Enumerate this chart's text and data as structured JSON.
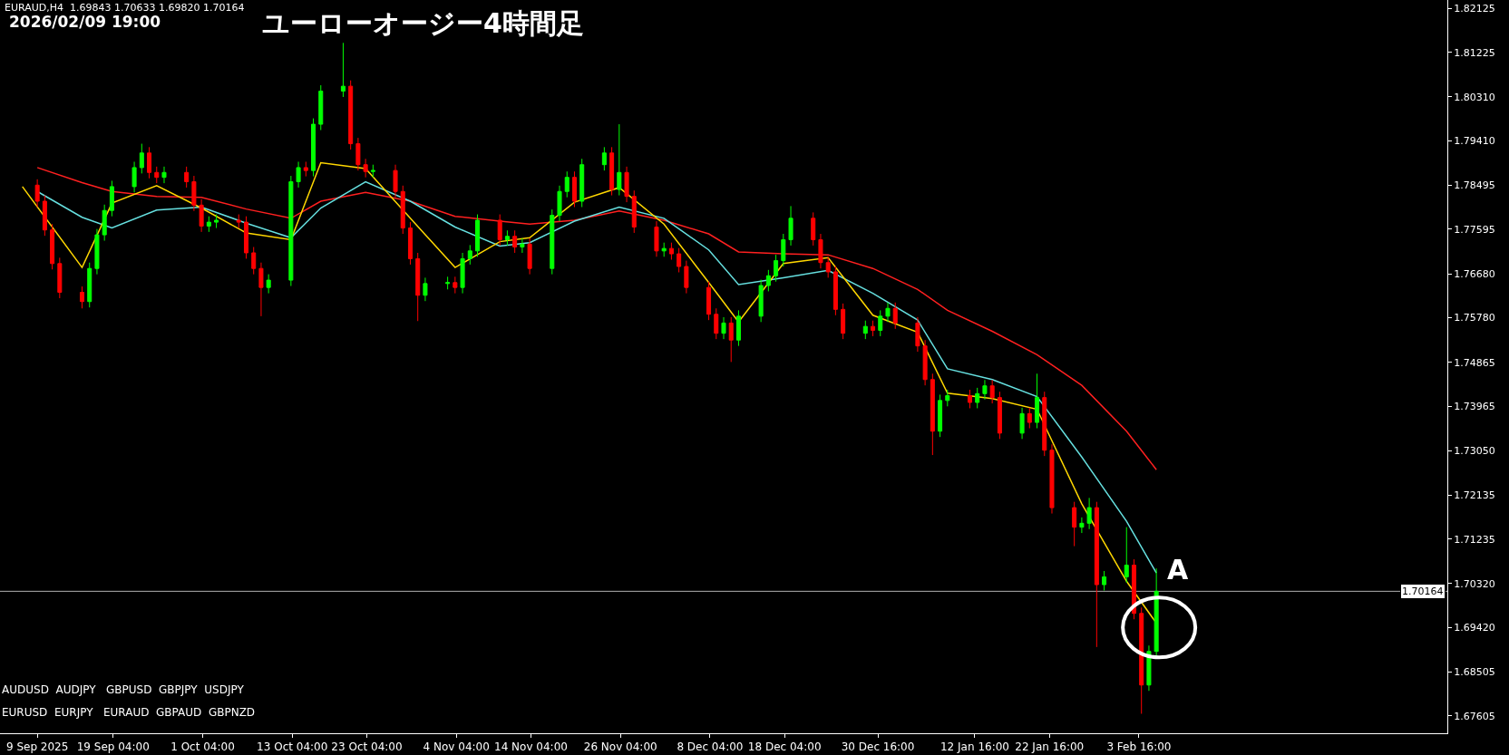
{
  "chart_data": {
    "type": "candlestick",
    "title": "ユーローオージー4時間足",
    "annotations": [
      "EURAUD,H4  1.69843 1.70633 1.69820 1.70164",
      "2026/02/09 19:00",
      "AUDUSD  AUDJPY   GBPUSD  GBPJPY  USDJPY",
      "EURUSD  EURJPY   EURAUD  GBPAUD  GBPNZD",
      "A"
    ],
    "colors": [
      "#ff0000",
      "#ff0000",
      "#ff0000",
      "#ff0000",
      "#ff0000",
      "#00ff00",
      "#00ff00",
      "#00ff00",
      "#00ff00",
      "#00ff00",
      "#00ff00",
      "#ff0000",
      "#ff0000",
      "#00ff00",
      "#ff0000",
      "#ff0000",
      "#ff0000",
      "#00ff00",
      "#00ff00",
      "#ff0000",
      "#ff0000",
      "#ff0000",
      "#ff0000",
      "#00ff00",
      "#00ff00",
      "#00ff00",
      "#ff0000",
      "#00ff00",
      "#00ff00",
      "#00ff00",
      "#ff0000",
      "#ff0000",
      "#ff0000",
      "#00ff00",
      "#ff0000",
      "#ff0000",
      "#ff0000",
      "#ff0000",
      "#00ff00",
      "#00ff00",
      "#ff0000",
      "#00ff00",
      "#00ff00",
      "#00ff00",
      "#ff0000",
      "#00ff00",
      "#ff0000",
      "#00ff00",
      "#ff0000",
      "#00ff00",
      "#00ff00",
      "#00ff00",
      "#ff0000",
      "#00ff00",
      "#00ff00",
      "#ff0000",
      "#00ff00",
      "#ff0000",
      "#ff0000",
      "#ff0000",
      "#00ff00",
      "#ff0000",
      "#ff0000",
      "#ff0000",
      "#ff0000",
      "#ff0000",
      "#00ff00",
      "#ff0000",
      "#00ff00",
      "#00ff00",
      "#00ff00",
      "#00ff00",
      "#00ff00",
      "#00ff00",
      "#ff0000",
      "#ff0000",
      "#ff0000",
      "#ff0000",
      "#ff0000",
      "#00ff00",
      "#ff0000",
      "#00ff00",
      "#00ff00",
      "#ff0000",
      "#ff0000",
      "#ff0000",
      "#ff0000",
      "#00ff00",
      "#00ff00",
      "#ff0000",
      "#00ff00",
      "#00ff00",
      "#ff0000",
      "#ff0000",
      "#00ff00",
      "#ff0000",
      "#00ff00",
      "#ff0000",
      "#ff0000",
      "#ff0000",
      "#00ff00",
      "#00ff00",
      "#ff0000",
      "#00ff00",
      "#00ff00",
      "#ff0000",
      "#ff0000",
      "#00ff00",
      "#00ff00"
    ],
    "x": [
      "2025-09-09",
      "2025-09-10",
      "2025-09-11",
      "2025-09-12",
      "2025-09-15",
      "2025-09-16",
      "2025-09-17",
      "2025-09-18",
      "2025-09-19",
      "2025-09-22",
      "2025-09-23",
      "2025-09-24",
      "2025-09-25",
      "2025-09-26",
      "2025-09-29",
      "2025-09-30",
      "2025-10-01",
      "2025-10-02",
      "2025-10-03",
      "2025-10-06",
      "2025-10-07",
      "2025-10-08",
      "2025-10-09",
      "2025-10-10",
      "2025-10-13",
      "2025-10-14",
      "2025-10-15",
      "2025-10-16",
      "2025-10-17",
      "2025-10-20",
      "2025-10-21",
      "2025-10-22",
      "2025-10-23",
      "2025-10-24",
      "2025-10-27",
      "2025-10-28",
      "2025-10-29",
      "2025-10-30",
      "2025-10-31",
      "2025-11-03",
      "2025-11-04",
      "2025-11-05",
      "2025-11-06",
      "2025-11-07",
      "2025-11-10",
      "2025-11-11",
      "2025-11-12",
      "2025-11-13",
      "2025-11-14",
      "2025-11-17",
      "2025-11-18",
      "2025-11-19",
      "2025-11-20",
      "2025-11-21",
      "2025-11-24",
      "2025-11-25",
      "2025-11-26",
      "2025-11-27",
      "2025-11-28",
      "2025-12-01",
      "2025-12-02",
      "2025-12-03",
      "2025-12-04",
      "2025-12-05",
      "2025-12-08",
      "2025-12-09",
      "2025-12-10",
      "2025-12-11",
      "2025-12-12",
      "2025-12-15",
      "2025-12-16",
      "2025-12-17",
      "2025-12-18",
      "2025-12-19",
      "2025-12-22",
      "2025-12-23",
      "2025-12-24",
      "2025-12-25",
      "2025-12-26",
      "2025-12-29",
      "2025-12-30",
      "2025-12-31",
      "2026-01-01",
      "2026-01-02",
      "2026-01-05",
      "2026-01-06",
      "2026-01-07",
      "2026-01-08",
      "2026-01-09",
      "2026-01-12",
      "2026-01-13",
      "2026-01-14",
      "2026-01-15",
      "2026-01-16",
      "2026-01-19",
      "2026-01-20",
      "2026-01-21",
      "2026-01-22",
      "2026-01-23",
      "2026-01-26",
      "2026-01-27",
      "2026-01-28",
      "2026-01-29",
      "2026-01-30",
      "2026-02-02",
      "2026-02-03",
      "2026-02-04",
      "2026-02-05",
      "2026-02-06"
    ],
    "ohlc": [
      [
        1.785,
        1.7862,
        1.7805,
        1.7817
      ],
      [
        1.7817,
        1.7829,
        1.7746,
        1.7758
      ],
      [
        1.7758,
        1.777,
        1.7677,
        1.7689
      ],
      [
        1.7689,
        1.7701,
        1.7618,
        1.763
      ],
      [
        1.763,
        1.7642,
        1.7597,
        1.7611
      ],
      [
        1.7611,
        1.7691,
        1.7599,
        1.7679
      ],
      [
        1.7679,
        1.776,
        1.7667,
        1.7748
      ],
      [
        1.7748,
        1.781,
        1.7736,
        1.7798
      ],
      [
        1.7798,
        1.7859,
        1.7786,
        1.7847
      ],
      [
        1.7847,
        1.7898,
        1.7835,
        1.7886
      ],
      [
        1.7886,
        1.7935,
        1.7874,
        1.7916
      ],
      [
        1.7916,
        1.7928,
        1.7864,
        1.7876
      ],
      [
        1.7876,
        1.7888,
        1.7854,
        1.7866
      ],
      [
        1.7866,
        1.7888,
        1.7854,
        1.7876
      ],
      [
        1.7876,
        1.7888,
        1.7845,
        1.7857
      ],
      [
        1.7857,
        1.7869,
        1.7797,
        1.7809
      ],
      [
        1.7809,
        1.7821,
        1.7754,
        1.7766
      ],
      [
        1.7766,
        1.7786,
        1.7754,
        1.7774
      ],
      [
        1.7774,
        1.779,
        1.7762,
        1.7778
      ],
      [
        1.7778,
        1.779,
        1.7762,
        1.7774
      ],
      [
        1.7774,
        1.7786,
        1.7699,
        1.7711
      ],
      [
        1.7711,
        1.7723,
        1.7667,
        1.7679
      ],
      [
        1.7679,
        1.7691,
        1.7581,
        1.764
      ],
      [
        1.764,
        1.7667,
        1.7628,
        1.7655
      ],
      [
        1.7655,
        1.7869,
        1.7643,
        1.7857
      ],
      [
        1.7857,
        1.7898,
        1.7845,
        1.7886
      ],
      [
        1.7886,
        1.7898,
        1.7868,
        1.788
      ],
      [
        1.788,
        1.7987,
        1.7868,
        1.7975
      ],
      [
        1.7975,
        1.8055,
        1.7963,
        1.8043
      ],
      [
        1.8043,
        1.8142,
        1.8031,
        1.8053
      ],
      [
        1.8053,
        1.8065,
        1.7923,
        1.7935
      ],
      [
        1.7935,
        1.7947,
        1.788,
        1.7892
      ],
      [
        1.7892,
        1.7904,
        1.7866,
        1.7878
      ],
      [
        1.7878,
        1.7892,
        1.7866,
        1.788
      ],
      [
        1.788,
        1.7892,
        1.7825,
        1.7837
      ],
      [
        1.7837,
        1.7849,
        1.775,
        1.7762
      ],
      [
        1.7762,
        1.7774,
        1.7687,
        1.7699
      ],
      [
        1.7699,
        1.7711,
        1.7571,
        1.7624
      ],
      [
        1.7624,
        1.766,
        1.7612,
        1.7648
      ],
      [
        1.7648,
        1.7662,
        1.7636,
        1.765
      ],
      [
        1.765,
        1.7662,
        1.7628,
        1.764
      ],
      [
        1.764,
        1.7711,
        1.7628,
        1.7699
      ],
      [
        1.7699,
        1.7727,
        1.7687,
        1.7715
      ],
      [
        1.7715,
        1.779,
        1.7703,
        1.7778
      ],
      [
        1.7778,
        1.779,
        1.7726,
        1.7738
      ],
      [
        1.7738,
        1.7757,
        1.7726,
        1.7745
      ],
      [
        1.7745,
        1.7757,
        1.7711,
        1.7723
      ],
      [
        1.7723,
        1.7741,
        1.7711,
        1.7729
      ],
      [
        1.7729,
        1.7741,
        1.7667,
        1.7679
      ],
      [
        1.7679,
        1.78,
        1.7667,
        1.7788
      ],
      [
        1.7788,
        1.7849,
        1.7776,
        1.7837
      ],
      [
        1.7837,
        1.7878,
        1.7825,
        1.7866
      ],
      [
        1.7866,
        1.7878,
        1.7805,
        1.7817
      ],
      [
        1.7817,
        1.7904,
        1.7805,
        1.7892
      ],
      [
        1.7892,
        1.7928,
        1.788,
        1.7916
      ],
      [
        1.7916,
        1.7928,
        1.7829,
        1.7841
      ],
      [
        1.7841,
        1.7975,
        1.7829,
        1.7876
      ],
      [
        1.7876,
        1.7888,
        1.7815,
        1.7827
      ],
      [
        1.7827,
        1.7839,
        1.7752,
        1.7764
      ],
      [
        1.7764,
        1.7776,
        1.7703,
        1.7715
      ],
      [
        1.7715,
        1.7732,
        1.7703,
        1.772
      ],
      [
        1.772,
        1.7732,
        1.7697,
        1.7709
      ],
      [
        1.7709,
        1.7721,
        1.7671,
        1.7683
      ],
      [
        1.7683,
        1.7695,
        1.7628,
        1.764
      ],
      [
        1.764,
        1.7652,
        1.7573,
        1.7585
      ],
      [
        1.7585,
        1.7597,
        1.7534,
        1.7546
      ],
      [
        1.7546,
        1.7579,
        1.7534,
        1.7567
      ],
      [
        1.7567,
        1.7579,
        1.7487,
        1.7532
      ],
      [
        1.7532,
        1.7593,
        1.752,
        1.7581
      ],
      [
        1.7581,
        1.7656,
        1.7569,
        1.7644
      ],
      [
        1.7644,
        1.7676,
        1.7632,
        1.7664
      ],
      [
        1.7664,
        1.7707,
        1.7652,
        1.7695
      ],
      [
        1.7695,
        1.775,
        1.7683,
        1.7738
      ],
      [
        1.7738,
        1.7807,
        1.7726,
        1.7782
      ],
      [
        1.7782,
        1.7794,
        1.7726,
        1.7738
      ],
      [
        1.7738,
        1.775,
        1.7679,
        1.7691
      ],
      [
        1.7691,
        1.7703,
        1.766,
        1.7672
      ],
      [
        1.7672,
        1.7684,
        1.7583,
        1.7595
      ],
      [
        1.7595,
        1.7607,
        1.7534,
        1.7546
      ],
      [
        1.7546,
        1.7572,
        1.7534,
        1.756
      ],
      [
        1.756,
        1.7572,
        1.754,
        1.7552
      ],
      [
        1.7552,
        1.7593,
        1.754,
        1.7581
      ],
      [
        1.7581,
        1.7609,
        1.7569,
        1.7597
      ],
      [
        1.7597,
        1.7609,
        1.7555,
        1.7567
      ],
      [
        1.7567,
        1.7579,
        1.7508,
        1.752
      ],
      [
        1.752,
        1.7532,
        1.7439,
        1.7451
      ],
      [
        1.7451,
        1.7463,
        1.7296,
        1.7345
      ],
      [
        1.7345,
        1.742,
        1.7333,
        1.7408
      ],
      [
        1.7408,
        1.743,
        1.7396,
        1.7418
      ],
      [
        1.7418,
        1.743,
        1.7392,
        1.7404
      ],
      [
        1.7404,
        1.7434,
        1.7392,
        1.7422
      ],
      [
        1.7422,
        1.745,
        1.741,
        1.7438
      ],
      [
        1.7438,
        1.745,
        1.7402,
        1.7414
      ],
      [
        1.7414,
        1.7426,
        1.7329,
        1.7341
      ],
      [
        1.7341,
        1.7393,
        1.7329,
        1.7381
      ],
      [
        1.7381,
        1.7393,
        1.7351,
        1.7363
      ],
      [
        1.7363,
        1.7463,
        1.7351,
        1.7414
      ],
      [
        1.7414,
        1.7426,
        1.7294,
        1.7306
      ],
      [
        1.7306,
        1.7318,
        1.7176,
        1.7188
      ],
      [
        1.7188,
        1.72,
        1.7109,
        1.7148
      ],
      [
        1.7148,
        1.7168,
        1.7136,
        1.7156
      ],
      [
        1.7156,
        1.7208,
        1.7144,
        1.7188
      ],
      [
        1.7188,
        1.72,
        1.6902,
        1.703
      ],
      [
        1.703,
        1.7058,
        1.7018,
        1.7046
      ],
      [
        1.7046,
        1.7148,
        1.7034,
        1.707
      ],
      [
        1.707,
        1.7082,
        1.6959,
        1.6971
      ],
      [
        1.6971,
        1.6983,
        1.6765,
        1.6824
      ],
      [
        1.6824,
        1.6905,
        1.6812,
        1.6893
      ],
      [
        1.6893,
        1.70633,
        1.6881,
        1.70164
      ]
    ],
    "series": [
      {
        "type": "line",
        "color": "#ff2020",
        "x": [
          "2025-09-09",
          "2025-09-15",
          "2025-09-19",
          "2025-09-25",
          "2025-10-01",
          "2025-10-07",
          "2025-10-13",
          "2025-10-17",
          "2025-10-23",
          "2025-10-29",
          "2025-11-04",
          "2025-11-10",
          "2025-11-14",
          "2025-11-20",
          "2025-11-26",
          "2025-12-02",
          "2025-12-08",
          "2025-12-12",
          "2025-12-18",
          "2025-12-24",
          "2025-12-30",
          "2026-01-05",
          "2026-01-09",
          "2026-01-15",
          "2026-01-21",
          "2026-01-27",
          "2026-02-02",
          "2026-02-06"
        ],
        "values": [
          1.7886,
          1.7855,
          1.7837,
          1.7827,
          1.7825,
          1.7801,
          1.7782,
          1.7817,
          1.7835,
          1.7817,
          1.7786,
          1.7776,
          1.777,
          1.7778,
          1.7797,
          1.7778,
          1.775,
          1.7713,
          1.7709,
          1.7707,
          1.7679,
          1.7636,
          1.7593,
          1.755,
          1.7502,
          1.7439,
          1.7345,
          1.7266
        ]
      },
      {
        "type": "line",
        "color": "#66e0e0",
        "x": [
          "2025-09-09",
          "2025-09-15",
          "2025-09-19",
          "2025-09-25",
          "2025-10-01",
          "2025-10-07",
          "2025-10-13",
          "2025-10-17",
          "2025-10-23",
          "2025-10-29",
          "2025-11-04",
          "2025-11-10",
          "2025-11-14",
          "2025-11-20",
          "2025-11-26",
          "2025-12-02",
          "2025-12-08",
          "2025-12-12",
          "2025-12-18",
          "2025-12-24",
          "2025-12-30",
          "2026-01-05",
          "2026-01-09",
          "2026-01-15",
          "2026-01-21",
          "2026-01-27",
          "2026-02-02",
          "2026-02-06"
        ],
        "values": [
          1.7837,
          1.7784,
          1.7762,
          1.7799,
          1.7805,
          1.7772,
          1.7742,
          1.7803,
          1.7857,
          1.7817,
          1.7764,
          1.7725,
          1.7732,
          1.7776,
          1.7805,
          1.7782,
          1.7717,
          1.7646,
          1.766,
          1.7675,
          1.7628,
          1.7573,
          1.7473,
          1.7451,
          1.7416,
          1.7292,
          1.716,
          1.7054
        ]
      },
      {
        "type": "line",
        "color": "#ffd700",
        "x": [
          "2025-09-07",
          "2025-09-15",
          "2025-09-19",
          "2025-09-25",
          "2025-10-01",
          "2025-10-07",
          "2025-10-13",
          "2025-10-17",
          "2025-10-23",
          "2025-10-29",
          "2025-11-04",
          "2025-11-10",
          "2025-11-14",
          "2025-11-20",
          "2025-11-26",
          "2025-12-02",
          "2025-12-08",
          "2025-12-12",
          "2025-12-18",
          "2025-12-24",
          "2025-12-30",
          "2026-01-05",
          "2026-01-09",
          "2026-01-15",
          "2026-01-21",
          "2026-01-27",
          "2026-02-02",
          "2026-02-06"
        ],
        "values": [
          1.7847,
          1.7681,
          1.7813,
          1.7849,
          1.7803,
          1.7752,
          1.7738,
          1.7896,
          1.7884,
          1.7782,
          1.7681,
          1.7734,
          1.7742,
          1.7815,
          1.7845,
          1.777,
          1.765,
          1.7569,
          1.7689,
          1.7701,
          1.7583,
          1.7548,
          1.7423,
          1.7412,
          1.739,
          1.7196,
          1.7037,
          1.6951
        ]
      }
    ],
    "ref_lines": [
      {
        "axis": "y",
        "value": 1.70164,
        "label": "1.70164",
        "color": "#b0b0b0"
      }
    ],
    "xlim": [
      "2025-09-04",
      "2026-03-17"
    ],
    "xticks": [
      {
        "value": "2025-09-09",
        "label": "9 Sep 2025"
      },
      {
        "value": "2025-09-19T04:00",
        "label": "19 Sep 04:00"
      },
      {
        "value": "2025-10-01T04:00",
        "label": "1 Oct 04:00"
      },
      {
        "value": "2025-10-13T04:00",
        "label": "13 Oct 04:00"
      },
      {
        "value": "2025-10-23T04:00",
        "label": "23 Oct 04:00"
      },
      {
        "value": "2025-11-04T04:00",
        "label": "4 Nov 04:00"
      },
      {
        "value": "2025-11-14T04:00",
        "label": "14 Nov 04:00"
      },
      {
        "value": "2025-11-26T04:00",
        "label": "26 Nov 04:00"
      },
      {
        "value": "2025-12-08T04:00",
        "label": "8 Dec 04:00"
      },
      {
        "value": "2025-12-18T04:00",
        "label": "18 Dec 04:00"
      },
      {
        "value": "2025-12-30T16:00",
        "label": "30 Dec 16:00"
      },
      {
        "value": "2026-01-12T16:00",
        "label": "12 Jan 16:00"
      },
      {
        "value": "2026-01-22T16:00",
        "label": "22 Jan 16:00"
      },
      {
        "value": "2026-02-03T16:00",
        "label": "3 Feb 16:00"
      }
    ],
    "ylim": [
      1.6725,
      1.823
    ],
    "yticks": [
      {
        "value": 1.67605,
        "label": "1.67605"
      },
      {
        "value": 1.68505,
        "label": "1.68505"
      },
      {
        "value": 1.6942,
        "label": "1.69420"
      },
      {
        "value": 1.7032,
        "label": "1.70320"
      },
      {
        "value": 1.71235,
        "label": "1.71235"
      },
      {
        "value": 1.72135,
        "label": "1.72135"
      },
      {
        "value": 1.7305,
        "label": "1.73050"
      },
      {
        "value": 1.73965,
        "label": "1.73965"
      },
      {
        "value": 1.74865,
        "label": "1.74865"
      },
      {
        "value": 1.7578,
        "label": "1.75780"
      },
      {
        "value": 1.7668,
        "label": "1.76680"
      },
      {
        "value": 1.77595,
        "label": "1.77595"
      },
      {
        "value": 1.78495,
        "label": "1.78495"
      },
      {
        "value": 1.7941,
        "label": "1.79410"
      },
      {
        "value": 1.8031,
        "label": "1.80310"
      },
      {
        "value": 1.81225,
        "label": "1.81225"
      },
      {
        "value": 1.82125,
        "label": "1.82125"
      }
    ],
    "grid": false
  }
}
